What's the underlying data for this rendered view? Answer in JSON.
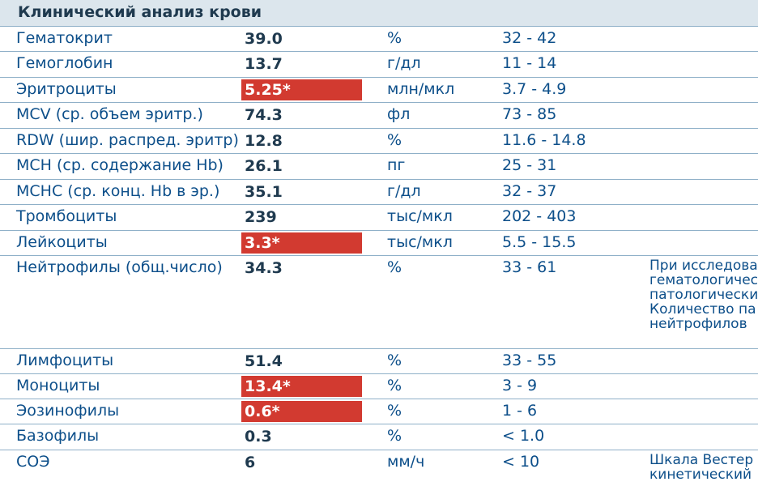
{
  "report": {
    "title": "Клинический анализ крови",
    "flag_color": "#d23a30",
    "rows": [
      {
        "name": "Гематокрит",
        "value": "39.0",
        "unit": "%",
        "ref": "32 - 42",
        "flag": false
      },
      {
        "name": "Гемоглобин",
        "value": "13.7",
        "unit": "г/дл",
        "ref": "11 - 14",
        "flag": false
      },
      {
        "name": "Эритроциты",
        "value": "5.25*",
        "unit": "млн/мкл",
        "ref": "3.7 - 4.9",
        "flag": true
      },
      {
        "name": "MCV (ср. объем эритр.)",
        "value": "74.3",
        "unit": "фл",
        "ref": "73 - 85",
        "flag": false
      },
      {
        "name": "RDW (шир. распред. эритр)",
        "value": "12.8",
        "unit": "%",
        "ref": "11.6 - 14.8",
        "flag": false
      },
      {
        "name": "MCH (ср. содержание Hb)",
        "value": "26.1",
        "unit": "пг",
        "ref": "25 - 31",
        "flag": false
      },
      {
        "name": "MCHC (ср. конц. Hb в эр.)",
        "value": "35.1",
        "unit": "г/дл",
        "ref": "32 - 37",
        "flag": false
      },
      {
        "name": "Тромбоциты",
        "value": "239",
        "unit": "тыс/мкл",
        "ref": "202 - 403",
        "flag": false
      },
      {
        "name": "Лейкоциты",
        "value": "3.3*",
        "unit": "тыс/мкл",
        "ref": "5.5 - 15.5",
        "flag": true
      },
      {
        "name": "Нейтрофилы (общ.число)",
        "value": "34.3",
        "unit": "%",
        "ref": "33 - 61",
        "flag": false,
        "comment": "При исследова\nгематологичес\nпатологически\nКоличество па\nнейтрофилов"
      },
      {
        "name": "Лимфоциты",
        "value": "51.4",
        "unit": "%",
        "ref": "33 - 55",
        "flag": false
      },
      {
        "name": "Моноциты",
        "value": "13.4*",
        "unit": "%",
        "ref": "3 - 9",
        "flag": true
      },
      {
        "name": "Эозинофилы",
        "value": "0.6*",
        "unit": "%",
        "ref": "1 - 6",
        "flag": true
      },
      {
        "name": "Базофилы",
        "value": "0.3",
        "unit": "%",
        "ref": "< 1.0",
        "flag": false
      },
      {
        "name": "СОЭ",
        "value": "6",
        "unit": "мм/ч",
        "ref": "< 10",
        "flag": false,
        "comment": "Шкала Вестер\nкинетический"
      }
    ]
  }
}
